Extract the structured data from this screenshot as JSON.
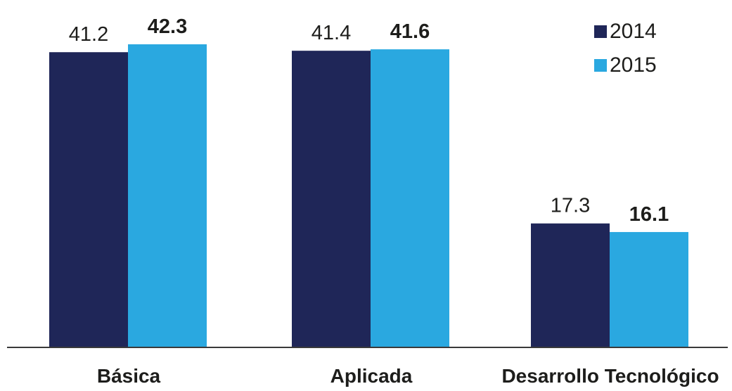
{
  "chart_data": {
    "type": "bar",
    "categories": [
      "Básica",
      "Aplicada",
      "Desarrollo Tecnológico"
    ],
    "series": [
      {
        "name": "2014",
        "values": [
          41.2,
          41.4,
          17.3
        ],
        "color": "#1f2658"
      },
      {
        "name": "2015",
        "values": [
          42.3,
          41.6,
          16.1
        ],
        "color": "#2aa8e0"
      }
    ],
    "title": "",
    "xlabel": "",
    "ylabel": "",
    "ylim": [
      0,
      42.3
    ],
    "grid": false,
    "legend_position": "top-right"
  }
}
